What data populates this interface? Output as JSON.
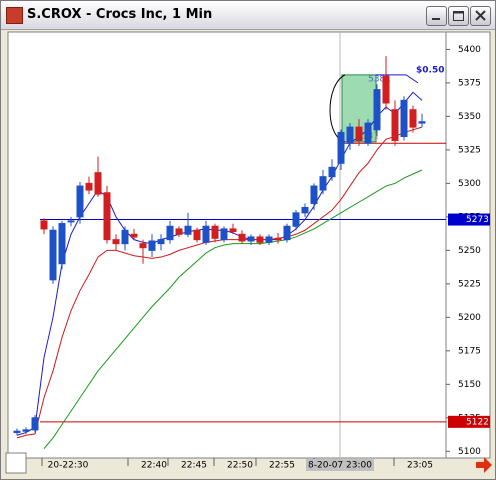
{
  "window": {
    "title": "S.CROX - Crocs Inc, 1 Min"
  },
  "chart_data": {
    "type": "candlestick",
    "up_color": "#1e50c8",
    "down_color": "#d21e1e",
    "open": [
      5114,
      5115,
      5116,
      5272,
      5228,
      5240,
      5272,
      5275,
      5300,
      5308,
      5293,
      5258,
      5255,
      5262,
      5255,
      5250,
      5255,
      5258,
      5266,
      5262,
      5265,
      5256,
      5268,
      5258,
      5266,
      5262,
      5257,
      5260,
      5256,
      5259,
      5258,
      5268,
      5278,
      5285,
      5295,
      5305,
      5315,
      5330,
      5342,
      5330,
      5340,
      5380,
      5355,
      5335,
      5355,
      5345
    ],
    "high": [
      5117,
      5118,
      5127,
      5274,
      5268,
      5272,
      5275,
      5301,
      5305,
      5320,
      5298,
      5262,
      5268,
      5266,
      5258,
      5262,
      5262,
      5272,
      5268,
      5278,
      5267,
      5272,
      5270,
      5268,
      5270,
      5265,
      5262,
      5262,
      5262,
      5263,
      5270,
      5280,
      5285,
      5300,
      5310,
      5318,
      5340,
      5345,
      5348,
      5348,
      5374,
      5395,
      5362,
      5365,
      5358,
      5352
    ],
    "low": [
      5112,
      5113,
      5114,
      5262,
      5225,
      5236,
      5268,
      5270,
      5292,
      5290,
      5255,
      5250,
      5250,
      5258,
      5240,
      5245,
      5250,
      5255,
      5260,
      5260,
      5256,
      5254,
      5256,
      5256,
      5262,
      5255,
      5254,
      5254,
      5254,
      5255,
      5256,
      5265,
      5275,
      5280,
      5292,
      5302,
      5310,
      5325,
      5328,
      5328,
      5335,
      5355,
      5328,
      5332,
      5338,
      5342
    ],
    "close": [
      5115,
      5116,
      5125,
      5266,
      5265,
      5270,
      5272,
      5298,
      5295,
      5292,
      5258,
      5255,
      5265,
      5260,
      5252,
      5257,
      5258,
      5268,
      5262,
      5268,
      5258,
      5268,
      5259,
      5266,
      5264,
      5257,
      5260,
      5256,
      5260,
      5258,
      5268,
      5278,
      5282,
      5298,
      5305,
      5312,
      5338,
      5342,
      5332,
      5345,
      5370,
      5360,
      5332,
      5362,
      5342,
      5346
    ],
    "series": [
      {
        "color": "#1a1ad0",
        "values": [
          5112,
          5114,
          5118,
          5170,
          5200,
          5240,
          5262,
          5275,
          5285,
          5295,
          5290,
          5275,
          5265,
          5258,
          5256,
          5255,
          5258,
          5260,
          5262,
          5264,
          5265,
          5266,
          5265,
          5265,
          5263,
          5260,
          5258,
          5258,
          5258,
          5258,
          5261,
          5266,
          5273,
          5283,
          5295,
          5305,
          5318,
          5330,
          5335,
          5340,
          5350,
          5357,
          5352,
          5360,
          5368,
          5362
        ]
      },
      {
        "color": "#d01a1a",
        "values": [
          5110,
          5112,
          5113,
          5140,
          5160,
          5185,
          5205,
          5220,
          5232,
          5245,
          5250,
          5250,
          5248,
          5246,
          5245,
          5244,
          5245,
          5247,
          5250,
          5252,
          5254,
          5256,
          5257,
          5258,
          5258,
          5258,
          5258,
          5258,
          5258,
          5259,
          5260,
          5262,
          5265,
          5270,
          5275,
          5280,
          5288,
          5298,
          5308,
          5315,
          5325,
          5333,
          5335,
          5338,
          5340,
          5342
        ]
      },
      {
        "color": "#1a9a1a",
        "values": [
          null,
          null,
          null,
          5102,
          5110,
          5120,
          5130,
          5140,
          5150,
          5160,
          5168,
          5176,
          5184,
          5192,
          5200,
          5208,
          5215,
          5222,
          5230,
          5236,
          5242,
          5248,
          5252,
          5254,
          5255,
          5255,
          5255,
          5255,
          5256,
          5257,
          5258,
          5260,
          5263,
          5266,
          5270,
          5274,
          5278,
          5282,
          5286,
          5290,
          5294,
          5298,
          5300,
          5304,
          5307,
          5310
        ]
      }
    ],
    "ylim": [
      5095,
      5413
    ],
    "yticks": [
      5100,
      5125,
      5150,
      5175,
      5200,
      5225,
      5250,
      5275,
      5300,
      5325,
      5350,
      5375,
      5400
    ],
    "x_labels": [
      "20-22:30",
      "22:40",
      "22:45",
      "22:50",
      "22:55",
      "8-20-07 23:00",
      "23:05"
    ],
    "levels": [
      {
        "value": 5273,
        "color": "#0000cc",
        "label": "5273"
      },
      {
        "value": 5122,
        "color": "#cc0000",
        "label": "5122"
      },
      {
        "value": 5330,
        "color": "#cc0000"
      }
    ],
    "box": {
      "top": 5381,
      "bottom": 5331,
      "color": "#7ccf9a"
    },
    "annotation": "$0.50"
  }
}
